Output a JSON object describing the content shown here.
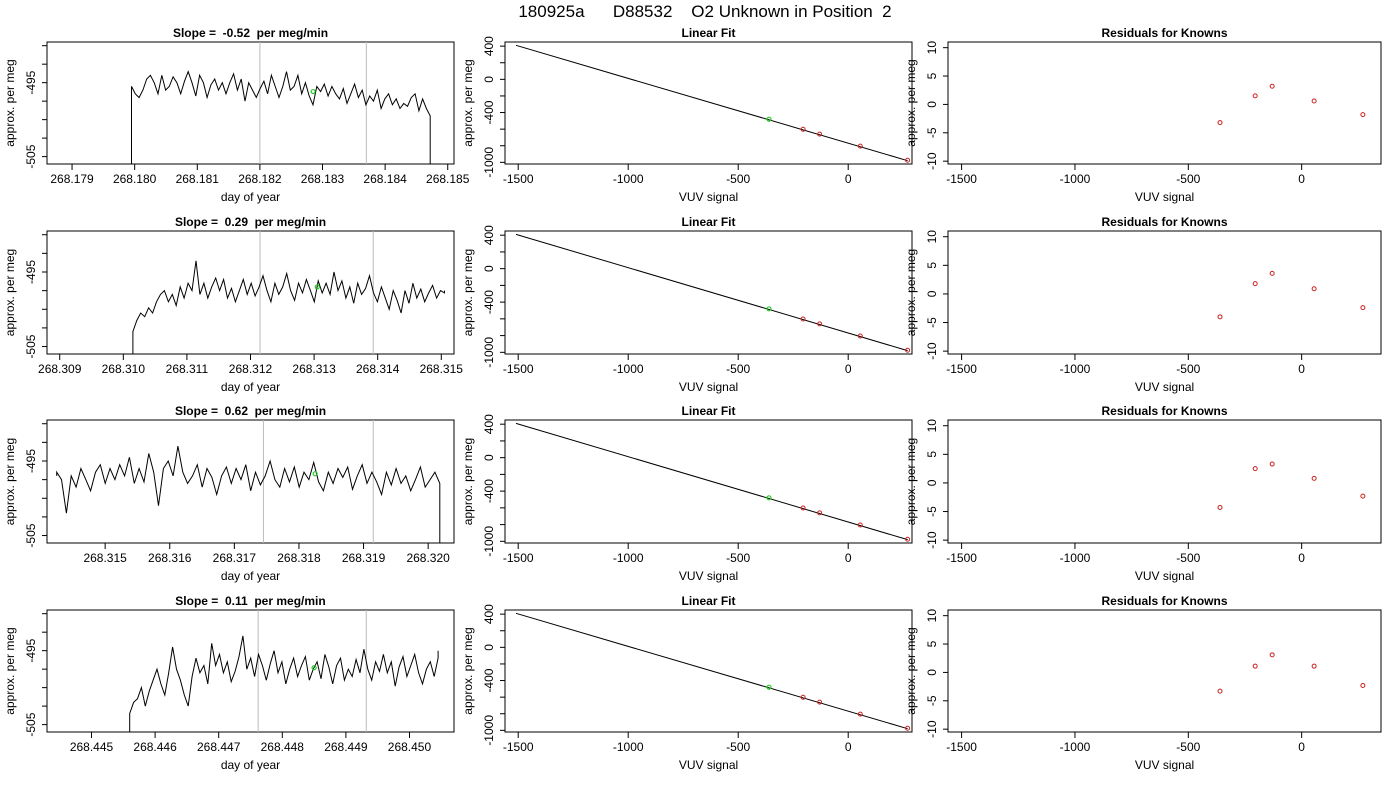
{
  "figure": {
    "title": "180925a      D88532    O2 Unknown in Position  2",
    "colors": {
      "trace": "#000000",
      "fit": "#000000",
      "unknown": "#22cc22",
      "known": "#cc2222",
      "vline": "#bbbbbb"
    }
  },
  "chart_data": [
    {
      "type": "line",
      "panel": "timeseries",
      "title": "Slope =  -0.52  per meg/min",
      "xlabel": "day of year",
      "ylabel": "approx. per meg",
      "xlim": [
        268.1786,
        268.1851
      ],
      "ylim": [
        -506,
        -489.5
      ],
      "xticks": [
        "268.179",
        "268.180",
        "268.181",
        "268.182",
        "268.183",
        "268.184",
        "268.185"
      ],
      "yticks": [
        "-495",
        "-505"
      ],
      "vlines": [
        268.182,
        268.1837
      ],
      "x_start": 268.17995,
      "x_end": 268.18472,
      "start_level": -506,
      "end_level": -506,
      "levels": [
        -495.5,
        -496.5,
        -497,
        -496,
        -494.5,
        -494,
        -495,
        -496.5,
        -494,
        -496,
        -495.5,
        -494.2,
        -495,
        -496.5,
        -494.8,
        -493.5,
        -495,
        -496.8,
        -494,
        -495,
        -497,
        -495.3,
        -494.5,
        -496,
        -495,
        -496.5,
        -495,
        -493.8,
        -496,
        -494.5,
        -497.5,
        -495,
        -496,
        -497,
        -495.8,
        -494.8,
        -496.5,
        -494,
        -495.5,
        -497,
        -495.5,
        -493.5,
        -496,
        -495.5,
        -494,
        -496.5,
        -495,
        -496.8,
        -498,
        -495.5,
        -496.2,
        -495.2,
        -496.8,
        -495.5,
        -496.5,
        -497.2,
        -495.8,
        -497.8,
        -496.5,
        -495.2,
        -497,
        -496,
        -498,
        -496.8,
        -497.5,
        -496,
        -498.5,
        -497.2,
        -496.5,
        -498,
        -497.2,
        -498.5,
        -497.8,
        -498.2,
        -497,
        -496.5,
        -498.8,
        -497.2,
        -498.5,
        -499.5
      ],
      "unknown_point": [
        268.18285,
        -496.2
      ]
    },
    {
      "type": "line",
      "panel": "fit",
      "title": "Linear Fit",
      "xlabel": "VUV signal",
      "ylabel": "approx. per meg",
      "xlim": [
        -1560,
        290
      ],
      "ylim": [
        -1020,
        450
      ],
      "xticks": [
        "-1500",
        "-1000",
        "-500",
        "0"
      ],
      "xtick_values": [
        -1500,
        -1000,
        -500,
        0
      ],
      "yticks": [
        "400",
        "0",
        "-400",
        "-1000"
      ],
      "ytick_values": [
        400,
        0,
        -400,
        -1000
      ],
      "fit_line": [
        [
          -1510,
          410
        ],
        [
          270,
          -980
        ]
      ],
      "unknown_point": [
        -360,
        -480
      ],
      "known_points": [
        [
          -205,
          -602
        ],
        [
          -130,
          -660
        ],
        [
          55,
          -805
        ],
        [
          270,
          -975
        ]
      ]
    },
    {
      "type": "scatter",
      "panel": "residuals",
      "title": "Residuals for Knowns",
      "xlabel": "VUV signal",
      "ylabel": "approx. per meg",
      "xlim": [
        -1560,
        350
      ],
      "ylim": [
        -10.5,
        11
      ],
      "xticks": [
        "-1500",
        "-1000",
        "-500",
        "0"
      ],
      "xtick_values": [
        -1500,
        -1000,
        -500,
        0
      ],
      "yticks": [
        "10",
        "5",
        "0",
        "-5",
        "-10"
      ],
      "ytick_values": [
        10,
        5,
        0,
        -5,
        -10
      ],
      "points": [
        [
          -360,
          -3.2
        ],
        [
          -205,
          1.5
        ],
        [
          -130,
          3.2
        ],
        [
          55,
          0.6
        ],
        [
          270,
          -1.8
        ]
      ]
    },
    {
      "type": "line",
      "panel": "timeseries",
      "title": "Slope =  0.29  per meg/min",
      "xlabel": "day of year",
      "ylabel": "approx. per meg",
      "xlim": [
        268.3088,
        268.3152
      ],
      "ylim": [
        -506,
        -489.5
      ],
      "xticks": [
        "268.309",
        "268.310",
        "268.311",
        "268.312",
        "268.313",
        "268.314",
        "268.315"
      ],
      "yticks": [
        "-495",
        "-505"
      ],
      "vlines": [
        268.31215,
        268.31393
      ],
      "x_start": 268.31015,
      "x_end": 268.31505,
      "start_level": -506,
      "end_level": -497.5,
      "levels": [
        -503,
        -501.5,
        -500.5,
        -501,
        -499.8,
        -500.5,
        -499,
        -498,
        -497.5,
        -499,
        -498,
        -499.5,
        -497,
        -498.5,
        -496.5,
        -497.5,
        -493.5,
        -498,
        -496.5,
        -498.5,
        -497,
        -495.8,
        -497.5,
        -496,
        -498.5,
        -497.2,
        -499,
        -497.5,
        -496,
        -498,
        -496.5,
        -498.2,
        -497,
        -495.5,
        -497.5,
        -499,
        -496.5,
        -498,
        -497,
        -495.2,
        -497.5,
        -498.8,
        -496.5,
        -497.8,
        -496,
        -497.5,
        -499,
        -496.2,
        -497.8,
        -496.5,
        -498,
        -495,
        -497.5,
        -496.2,
        -498.5,
        -497,
        -499.2,
        -496.5,
        -498,
        -497.2,
        -495.5,
        -497.8,
        -499,
        -497,
        -498.5,
        -500,
        -497.5,
        -498.8,
        -500.5,
        -497.5,
        -499.2,
        -496.5,
        -498.5,
        -497.3,
        -499,
        -497.8,
        -496.8,
        -498.5,
        -497.5,
        -497.8
      ],
      "unknown_point": [
        268.31305,
        -497
      ]
    },
    {
      "type": "line",
      "panel": "fit",
      "title": "Linear Fit",
      "xlabel": "VUV signal",
      "ylabel": "approx. per meg",
      "xlim": [
        -1560,
        290
      ],
      "ylim": [
        -1020,
        450
      ],
      "xticks": [
        "-1500",
        "-1000",
        "-500",
        "0"
      ],
      "xtick_values": [
        -1500,
        -1000,
        -500,
        0
      ],
      "yticks": [
        "400",
        "0",
        "-400",
        "-1000"
      ],
      "ytick_values": [
        400,
        0,
        -400,
        -1000
      ],
      "fit_line": [
        [
          -1510,
          410
        ],
        [
          270,
          -980
        ]
      ],
      "unknown_point": [
        -360,
        -480
      ],
      "known_points": [
        [
          -205,
          -602
        ],
        [
          -130,
          -660
        ],
        [
          55,
          -805
        ],
        [
          270,
          -975
        ]
      ]
    },
    {
      "type": "scatter",
      "panel": "residuals",
      "title": "Residuals for Knowns",
      "xlabel": "VUV signal",
      "ylabel": "approx. per meg",
      "xlim": [
        -1560,
        350
      ],
      "ylim": [
        -10.5,
        11
      ],
      "xticks": [
        "-1500",
        "-1000",
        "-500",
        "0"
      ],
      "xtick_values": [
        -1500,
        -1000,
        -500,
        0
      ],
      "yticks": [
        "10",
        "5",
        "0",
        "-5",
        "-10"
      ],
      "ytick_values": [
        10,
        5,
        0,
        -5,
        -10
      ],
      "points": [
        [
          -360,
          -4.0
        ],
        [
          -205,
          1.8
        ],
        [
          -130,
          3.6
        ],
        [
          55,
          0.9
        ],
        [
          270,
          -2.4
        ]
      ]
    },
    {
      "type": "line",
      "panel": "timeseries",
      "title": "Slope =  0.62  per meg/min",
      "xlabel": "day of year",
      "ylabel": "approx. per meg",
      "xlim": [
        268.3141,
        268.3204
      ],
      "ylim": [
        -506,
        -489.5
      ],
      "xticks": [
        "268.315",
        "268.316",
        "268.317",
        "268.318",
        "268.319",
        "268.320"
      ],
      "yticks": [
        "-495",
        "-505"
      ],
      "vlines": [
        268.31745,
        268.31915
      ],
      "x_start": 268.31425,
      "x_end": 268.32018,
      "start_level": -497,
      "end_level": -506,
      "levels": [
        -496.5,
        -497.5,
        -502,
        -497,
        -498.5,
        -496,
        -497.5,
        -499,
        -496.5,
        -495.5,
        -498,
        -496,
        -497.5,
        -495.5,
        -497,
        -494.5,
        -498,
        -496,
        -497.8,
        -494,
        -496.5,
        -501,
        -496,
        -495,
        -497,
        -493,
        -496.5,
        -498,
        -497,
        -495.5,
        -498.5,
        -496,
        -497.2,
        -499.5,
        -497,
        -495.8,
        -498,
        -496,
        -497.5,
        -495.5,
        -499,
        -496.5,
        -498.2,
        -497,
        -495,
        -497.5,
        -498.5,
        -496,
        -497.8,
        -495.8,
        -498.5,
        -496.5,
        -497.5,
        -495.2,
        -497.8,
        -499,
        -496.5,
        -498,
        -496,
        -497.2,
        -495.8,
        -498.8,
        -497,
        -495.5,
        -498,
        -496.5,
        -497.8,
        -499.5,
        -496.5,
        -498.2,
        -496,
        -498,
        -497,
        -499,
        -497.5,
        -495.8,
        -498.5,
        -497.5,
        -496.5,
        -498
      ],
      "unknown_point": [
        268.31825,
        -496.7
      ]
    },
    {
      "type": "line",
      "panel": "fit",
      "title": "Linear Fit",
      "xlabel": "VUV signal",
      "ylabel": "approx. per meg",
      "xlim": [
        -1560,
        290
      ],
      "ylim": [
        -1020,
        450
      ],
      "xticks": [
        "-1500",
        "-1000",
        "-500",
        "0"
      ],
      "xtick_values": [
        -1500,
        -1000,
        -500,
        0
      ],
      "yticks": [
        "400",
        "0",
        "-400",
        "-1000"
      ],
      "ytick_values": [
        400,
        0,
        -400,
        -1000
      ],
      "fit_line": [
        [
          -1510,
          410
        ],
        [
          270,
          -980
        ]
      ],
      "unknown_point": [
        -360,
        -480
      ],
      "known_points": [
        [
          -205,
          -602
        ],
        [
          -130,
          -660
        ],
        [
          55,
          -805
        ],
        [
          270,
          -975
        ]
      ]
    },
    {
      "type": "scatter",
      "panel": "residuals",
      "title": "Residuals for Knowns",
      "xlabel": "VUV signal",
      "ylabel": "approx. per meg",
      "xlim": [
        -1560,
        350
      ],
      "ylim": [
        -10.5,
        11
      ],
      "xticks": [
        "-1500",
        "-1000",
        "-500",
        "0"
      ],
      "xtick_values": [
        -1500,
        -1000,
        -500,
        0
      ],
      "yticks": [
        "10",
        "5",
        "0",
        "-5",
        "-10"
      ],
      "ytick_values": [
        10,
        5,
        0,
        -5,
        -10
      ],
      "points": [
        [
          -360,
          -4.3
        ],
        [
          -205,
          2.5
        ],
        [
          -130,
          3.3
        ],
        [
          55,
          0.8
        ],
        [
          270,
          -2.3
        ]
      ]
    },
    {
      "type": "line",
      "panel": "timeseries",
      "title": "Slope =  0.11  per meg/min",
      "xlabel": "day of year",
      "ylabel": "approx. per meg",
      "xlim": [
        268.4443,
        268.4507
      ],
      "ylim": [
        -506,
        -489.5
      ],
      "xticks": [
        "268.445",
        "268.446",
        "268.447",
        "268.448",
        "268.449",
        "268.450"
      ],
      "yticks": [
        "-495",
        "-505"
      ],
      "vlines": [
        268.44762,
        268.44932
      ],
      "x_start": 268.4456,
      "x_end": 268.45045,
      "start_level": -506,
      "end_level": -495,
      "levels": [
        -503.5,
        -502,
        -501.5,
        -500,
        -502.5,
        -500.5,
        -499,
        -497.5,
        -499.5,
        -501,
        -498,
        -494.5,
        -497.5,
        -499,
        -501,
        -502.5,
        -498.5,
        -496,
        -498,
        -497,
        -499.5,
        -494,
        -497,
        -495.5,
        -498,
        -496.5,
        -499.2,
        -497.8,
        -495.8,
        -493,
        -497.5,
        -496,
        -498.5,
        -495.5,
        -497,
        -499,
        -496.8,
        -495,
        -498,
        -496.5,
        -499.5,
        -497.5,
        -496,
        -498.5,
        -497,
        -495.8,
        -499,
        -497.5,
        -496.5,
        -498.8,
        -495.5,
        -497.2,
        -499.5,
        -497,
        -496,
        -499,
        -497.5,
        -498.5,
        -496.2,
        -498,
        -494.8,
        -497.5,
        -499,
        -496.5,
        -497.8,
        -495.5,
        -498,
        -496.5,
        -499.8,
        -497.2,
        -495.8,
        -498.5,
        -497,
        -495.5,
        -498,
        -499.5,
        -497.5,
        -496.5,
        -498.5,
        -496
      ],
      "unknown_point": [
        268.4485,
        -497.3
      ]
    },
    {
      "type": "line",
      "panel": "fit",
      "title": "Linear Fit",
      "xlabel": "VUV signal",
      "ylabel": "approx. per meg",
      "xlim": [
        -1560,
        290
      ],
      "ylim": [
        -1020,
        450
      ],
      "xticks": [
        "-1500",
        "-1000",
        "-500",
        "0"
      ],
      "xtick_values": [
        -1500,
        -1000,
        -500,
        0
      ],
      "yticks": [
        "400",
        "0",
        "-400",
        "-1000"
      ],
      "ytick_values": [
        400,
        0,
        -400,
        -1000
      ],
      "fit_line": [
        [
          -1510,
          410
        ],
        [
          270,
          -980
        ]
      ],
      "unknown_point": [
        -360,
        -480
      ],
      "known_points": [
        [
          -205,
          -602
        ],
        [
          -130,
          -660
        ],
        [
          55,
          -805
        ],
        [
          270,
          -975
        ]
      ]
    },
    {
      "type": "scatter",
      "panel": "residuals",
      "title": "Residuals for Knowns",
      "xlabel": "VUV signal",
      "ylabel": "approx. per meg",
      "xlim": [
        -1560,
        350
      ],
      "ylim": [
        -10.5,
        11
      ],
      "xticks": [
        "-1500",
        "-1000",
        "-500",
        "0"
      ],
      "xtick_values": [
        -1500,
        -1000,
        -500,
        0
      ],
      "yticks": [
        "10",
        "5",
        "0",
        "-5",
        "-10"
      ],
      "ytick_values": [
        10,
        5,
        0,
        -5,
        -10
      ],
      "points": [
        [
          -360,
          -3.3
        ],
        [
          -205,
          1.1
        ],
        [
          -130,
          3.1
        ],
        [
          55,
          1.1
        ],
        [
          270,
          -2.3
        ]
      ]
    }
  ]
}
